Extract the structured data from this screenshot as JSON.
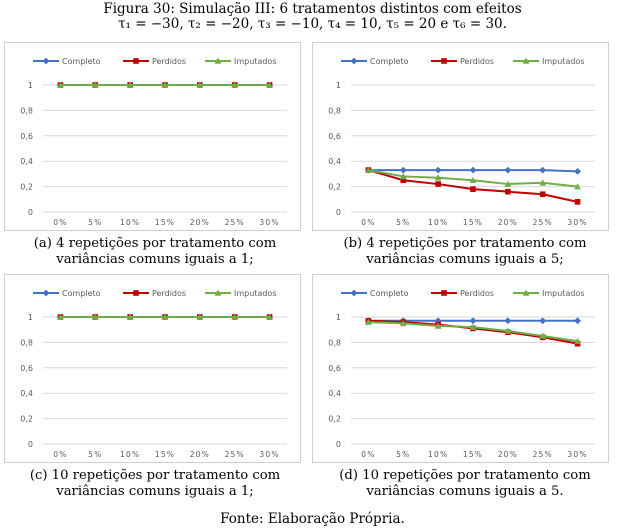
{
  "figure": {
    "title_line1": "Figura 30: Simulação III: 6 tratamentos distintos com efeitos",
    "title_line2": "τ₁ = −30, τ₂ = −20, τ₃ = −10, τ₄ = 10, τ₅ = 20 e τ₆ = 30.",
    "source": "Fonte: Elaboração Própria."
  },
  "captions": {
    "a_line1": "(a) 4 repetições por tratamento com",
    "a_line2": "variâncias comuns iguais a 1;",
    "b_line1": "(b) 4 repetições por tratamento com",
    "b_line2": "variâncias comuns iguais a 5;",
    "c_line1": "(c) 10 repetições por tratamento com",
    "c_line2": "variâncias comuns iguais a 1;",
    "d_line1": "(d) 10 repetições por tratamento com",
    "d_line2": "variâncias comuns iguais a 5."
  },
  "colors": {
    "completo": "#4472c4",
    "perdidos": "#c00000",
    "imputados": "#70ad47",
    "grid": "#d9d9d9"
  },
  "chart_data": [
    {
      "type": "line",
      "categories": [
        "0%",
        "5%",
        "10%",
        "15%",
        "20%",
        "25%",
        "30%"
      ],
      "ylim": [
        0,
        1
      ],
      "yticks": [
        "0",
        "0,2",
        "0,4",
        "0,6",
        "0,8",
        "1"
      ],
      "legend": "top",
      "series": [
        {
          "name": "Completo",
          "values": [
            1,
            1,
            1,
            1,
            1,
            1,
            1
          ]
        },
        {
          "name": "Perdidos",
          "values": [
            1,
            1,
            1,
            1,
            1,
            1,
            1
          ]
        },
        {
          "name": "Imputados",
          "values": [
            1,
            1,
            1,
            1,
            1,
            1,
            1
          ]
        }
      ]
    },
    {
      "type": "line",
      "categories": [
        "0%",
        "5%",
        "10%",
        "15%",
        "20%",
        "25%",
        "30%"
      ],
      "ylim": [
        0,
        1
      ],
      "yticks": [
        "0",
        "0,2",
        "0,4",
        "0,6",
        "0,8",
        "1"
      ],
      "legend": "top",
      "series": [
        {
          "name": "Completo",
          "values": [
            0.33,
            0.33,
            0.33,
            0.33,
            0.33,
            0.33,
            0.32
          ]
        },
        {
          "name": "Perdidos",
          "values": [
            0.33,
            0.25,
            0.22,
            0.18,
            0.16,
            0.14,
            0.08
          ]
        },
        {
          "name": "Imputados",
          "values": [
            0.33,
            0.28,
            0.27,
            0.25,
            0.22,
            0.23,
            0.2
          ]
        }
      ]
    },
    {
      "type": "line",
      "categories": [
        "0%",
        "5%",
        "10%",
        "15%",
        "20%",
        "25%",
        "30%"
      ],
      "ylim": [
        0,
        1
      ],
      "yticks": [
        "0",
        "0,2",
        "0,4",
        "0,6",
        "0,8",
        "1"
      ],
      "legend": "top",
      "series": [
        {
          "name": "Completo",
          "values": [
            1,
            1,
            1,
            1,
            1,
            1,
            1
          ]
        },
        {
          "name": "Perdidos",
          "values": [
            1,
            1,
            1,
            1,
            1,
            1,
            1
          ]
        },
        {
          "name": "Imputados",
          "values": [
            1,
            1,
            1,
            1,
            1,
            1,
            1
          ]
        }
      ]
    },
    {
      "type": "line",
      "categories": [
        "0%",
        "5%",
        "10%",
        "15%",
        "20%",
        "25%",
        "30%"
      ],
      "ylim": [
        0,
        1
      ],
      "yticks": [
        "0",
        "0,2",
        "0,4",
        "0,6",
        "0,8",
        "1"
      ],
      "legend": "top",
      "series": [
        {
          "name": "Completo",
          "values": [
            0.97,
            0.97,
            0.97,
            0.97,
            0.97,
            0.97,
            0.97
          ]
        },
        {
          "name": "Perdidos",
          "values": [
            0.97,
            0.96,
            0.94,
            0.91,
            0.88,
            0.84,
            0.79
          ]
        },
        {
          "name": "Imputados",
          "values": [
            0.96,
            0.95,
            0.93,
            0.92,
            0.89,
            0.85,
            0.81
          ]
        }
      ]
    }
  ]
}
